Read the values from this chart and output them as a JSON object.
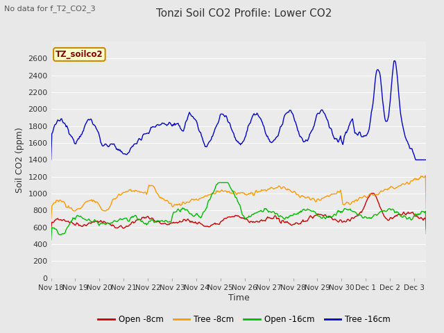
{
  "title": "Tonzi Soil CO2 Profile: Lower CO2",
  "subtitle": "No data for f_T2_CO2_3",
  "legend_box_label": "TZ_soilco2",
  "ylabel": "Soil CO2 (ppm)",
  "xlabel": "Time",
  "ylim": [
    0,
    2800
  ],
  "yticks": [
    0,
    200,
    400,
    600,
    800,
    1000,
    1200,
    1400,
    1600,
    1800,
    2000,
    2200,
    2400,
    2600
  ],
  "fig_bg_color": "#e8e8e8",
  "plot_bg_color": "#ebebeb",
  "grid_color": "#ffffff",
  "line_colors": {
    "open_8cm": "#cc0000",
    "tree_8cm": "#ff9900",
    "open_16cm": "#00bb00",
    "tree_16cm": "#0000cc"
  },
  "legend_labels": [
    "Open -8cm",
    "Tree -8cm",
    "Open -16cm",
    "Tree -16cm"
  ],
  "xtick_labels": [
    "Nov 18",
    "Nov 19",
    "Nov 20",
    "Nov 21",
    "Nov 22",
    "Nov 23",
    "Nov 24",
    "Nov 25",
    "Nov 26",
    "Nov 27",
    "Nov 28",
    "Nov 29",
    "Nov 30",
    "Dec 1",
    "Dec 2",
    "Dec 3"
  ],
  "n_days": 15.5,
  "n_points": 500
}
